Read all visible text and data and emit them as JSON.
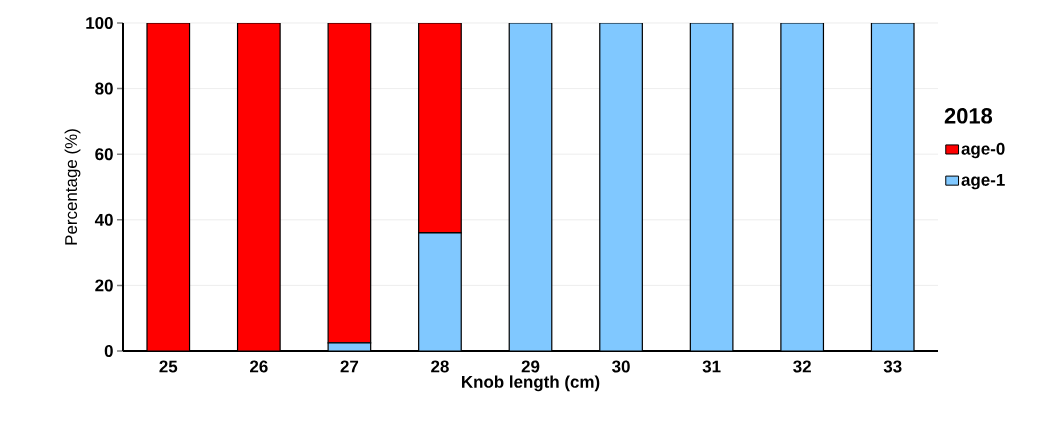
{
  "chart_data": {
    "type": "bar",
    "stacked": true,
    "xlabel": "Knob length (cm)",
    "ylabel": "Percentage (%)",
    "legend_title": "2018",
    "categories": [
      "25",
      "26",
      "27",
      "28",
      "29",
      "30",
      "31",
      "32",
      "33"
    ],
    "series": [
      {
        "name": "age-1",
        "color": "#80c8ff",
        "values": [
          0,
          0,
          2.5,
          36,
          100,
          100,
          100,
          100,
          100
        ]
      },
      {
        "name": "age-0",
        "color": "#ff0000",
        "values": [
          100,
          100,
          97.5,
          64,
          0,
          0,
          0,
          0,
          0
        ]
      }
    ],
    "ylim": [
      0,
      100
    ],
    "yticks": [
      0,
      20,
      40,
      60,
      80,
      100
    ],
    "grid": "y",
    "legend": "right"
  }
}
